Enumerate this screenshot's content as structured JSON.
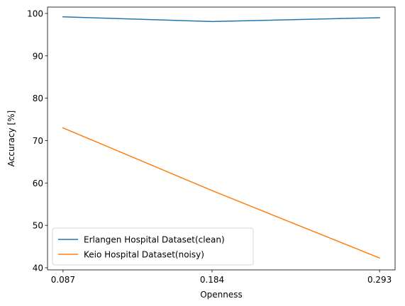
{
  "chart_data": {
    "type": "line",
    "title": "",
    "xlabel": "Openness",
    "ylabel": "Accuracy [%]",
    "x": [
      0.087,
      0.184,
      0.293
    ],
    "x_tick_labels": [
      "0.087",
      "0.184",
      "0.293"
    ],
    "y_ticks": [
      40,
      50,
      60,
      70,
      80,
      90,
      100
    ],
    "y_tick_labels": [
      "40",
      "50",
      "60",
      "70",
      "80",
      "90",
      "100"
    ],
    "xlim": [
      0.0769,
      0.3031
    ],
    "ylim": [
      39.5,
      101.5
    ],
    "grid": false,
    "legend_position": "lower-left",
    "series": [
      {
        "name": "Erlangen Hospital Dataset(clean)",
        "color": "#1f77b4",
        "values": [
          99.2,
          98.1,
          99.0
        ]
      },
      {
        "name": "Keio Hospital Dataset(noisy)",
        "color": "#ff7f0e",
        "values": [
          73.0,
          58.2,
          42.3
        ]
      }
    ]
  }
}
